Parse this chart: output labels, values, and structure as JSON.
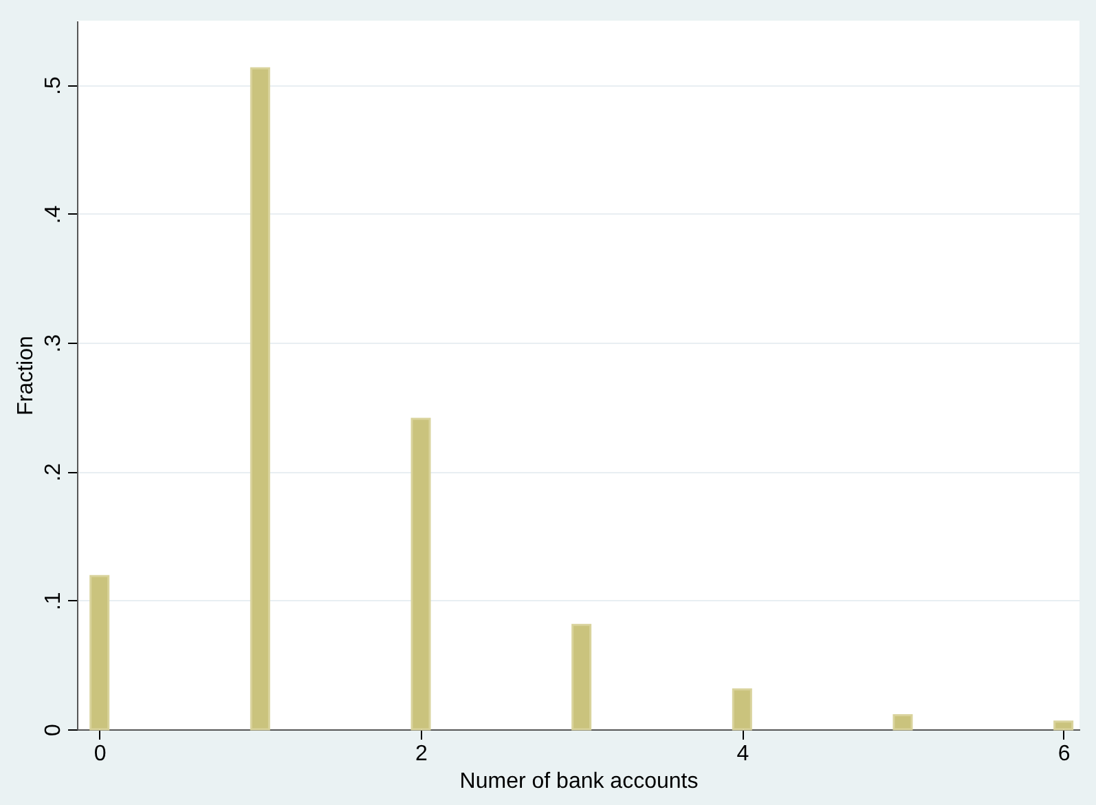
{
  "chart_data": {
    "type": "bar",
    "xlabel": "Numer of bank accounts",
    "ylabel": "Fraction",
    "x": [
      0,
      1,
      2,
      3,
      4,
      5,
      6
    ],
    "values": [
      0.119,
      0.513,
      0.241,
      0.081,
      0.031,
      0.011,
      0.006
    ],
    "color": "#cac37d",
    "xlim": [
      -0.14,
      6.1
    ],
    "xticks": [
      0,
      2,
      4,
      6
    ],
    "ylim": [
      0,
      0.55
    ],
    "yticks": [
      0,
      {
        "value": 0.1,
        "label": ".1"
      },
      {
        "value": 0.2,
        "label": ".2"
      },
      {
        "value": 0.3,
        "label": ".3"
      },
      {
        "value": 0.4,
        "label": ".4"
      },
      {
        "value": 0.5,
        "label": ".5"
      }
    ],
    "grid": "y"
  }
}
